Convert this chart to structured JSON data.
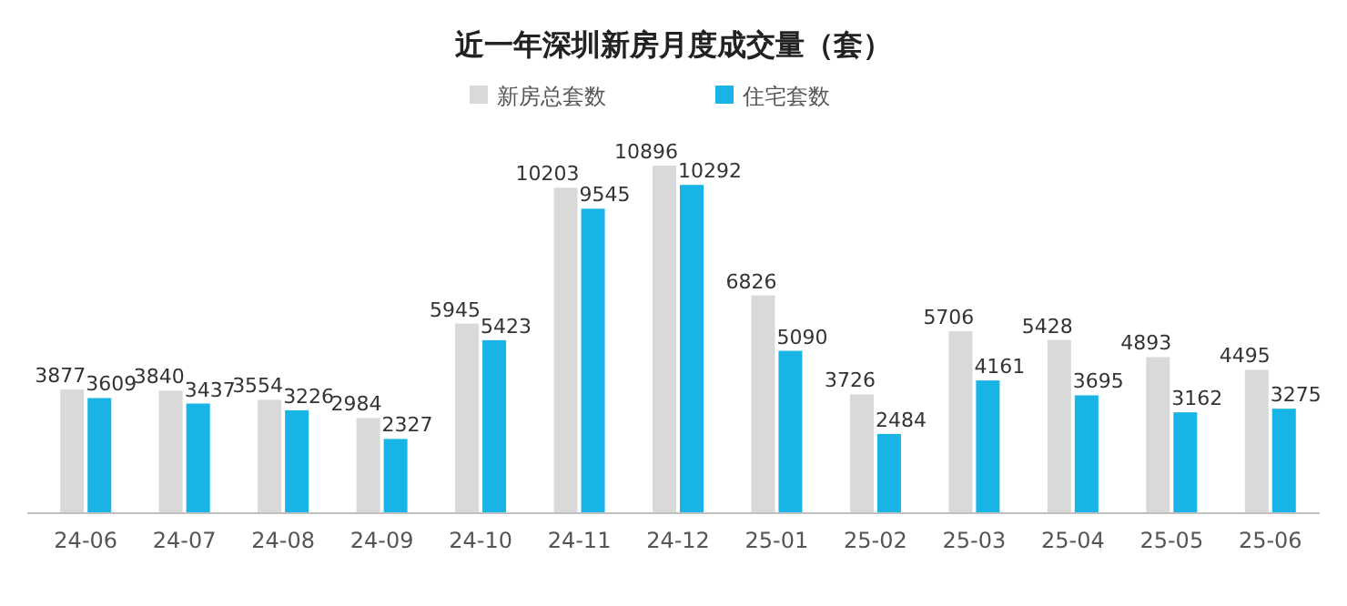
{
  "chart_data": {
    "type": "bar",
    "title": "近一年深圳新房月度成交量（套）",
    "categories": [
      "24-06",
      "24-07",
      "24-08",
      "24-09",
      "24-10",
      "24-11",
      "24-12",
      "25-01",
      "25-02",
      "25-03",
      "25-04",
      "25-05",
      "25-06"
    ],
    "series": [
      {
        "name": "新房总套数",
        "color": "#d9d9d9",
        "values": [
          3877,
          3840,
          3554,
          2984,
          5945,
          10203,
          10896,
          6826,
          3726,
          5706,
          5428,
          4893,
          4495
        ]
      },
      {
        "name": "住宅套数",
        "color": "#19b4e6",
        "values": [
          3609,
          3437,
          3226,
          2327,
          5423,
          9545,
          10292,
          5090,
          2484,
          4161,
          3695,
          3162,
          3275
        ]
      }
    ],
    "data_labels": true,
    "legend": "top"
  }
}
